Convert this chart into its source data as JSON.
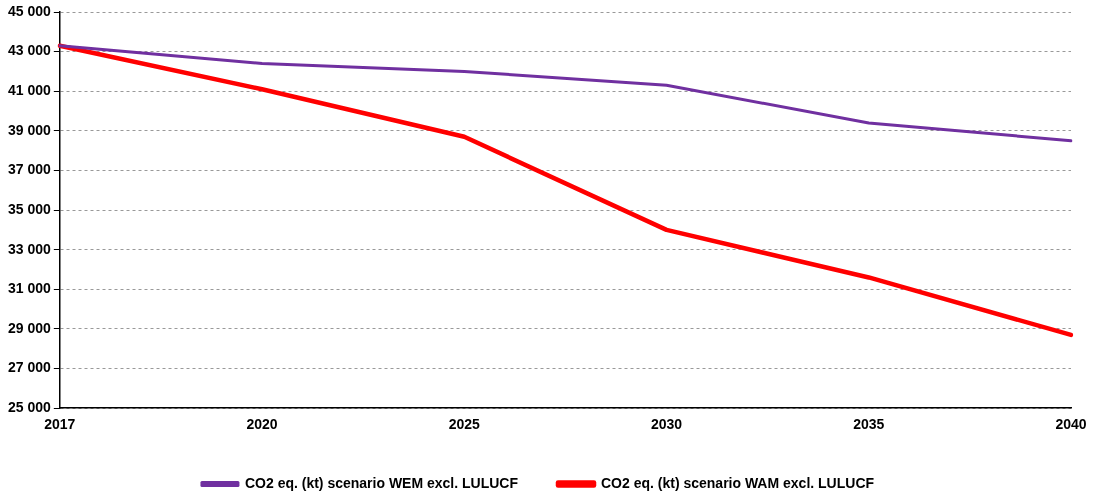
{
  "chart_data": {
    "type": "line",
    "categories": [
      "2017",
      "2020",
      "2025",
      "2030",
      "2035",
      "2040"
    ],
    "series": [
      {
        "name": "CO2 eq. (kt) scenario WEM excl. LULUCF",
        "color": "#7030a0",
        "values": [
          43300,
          42400,
          42000,
          41300,
          39400,
          38500
        ]
      },
      {
        "name": "CO2 eq. (kt) scenario WAM excl. LULUCF",
        "color": "#ff0000",
        "values": [
          43300,
          41100,
          38700,
          34000,
          31600,
          28700
        ]
      }
    ],
    "ylim": [
      25000,
      45000
    ],
    "yticks": [
      {
        "value": 25000,
        "label": "25 000"
      },
      {
        "value": 27000,
        "label": "27 000"
      },
      {
        "value": 29000,
        "label": "29 000"
      },
      {
        "value": 31000,
        "label": "31 000"
      },
      {
        "value": 33000,
        "label": "33 000"
      },
      {
        "value": 35000,
        "label": "35 000"
      },
      {
        "value": 37000,
        "label": "37 000"
      },
      {
        "value": 39000,
        "label": "39 000"
      },
      {
        "value": 41000,
        "label": "41 000"
      },
      {
        "value": 43000,
        "label": "43 000"
      },
      {
        "value": 45000,
        "label": "45 000"
      }
    ],
    "grid": "y",
    "legend": "bottom",
    "marker": "none",
    "line_style": "solid"
  }
}
